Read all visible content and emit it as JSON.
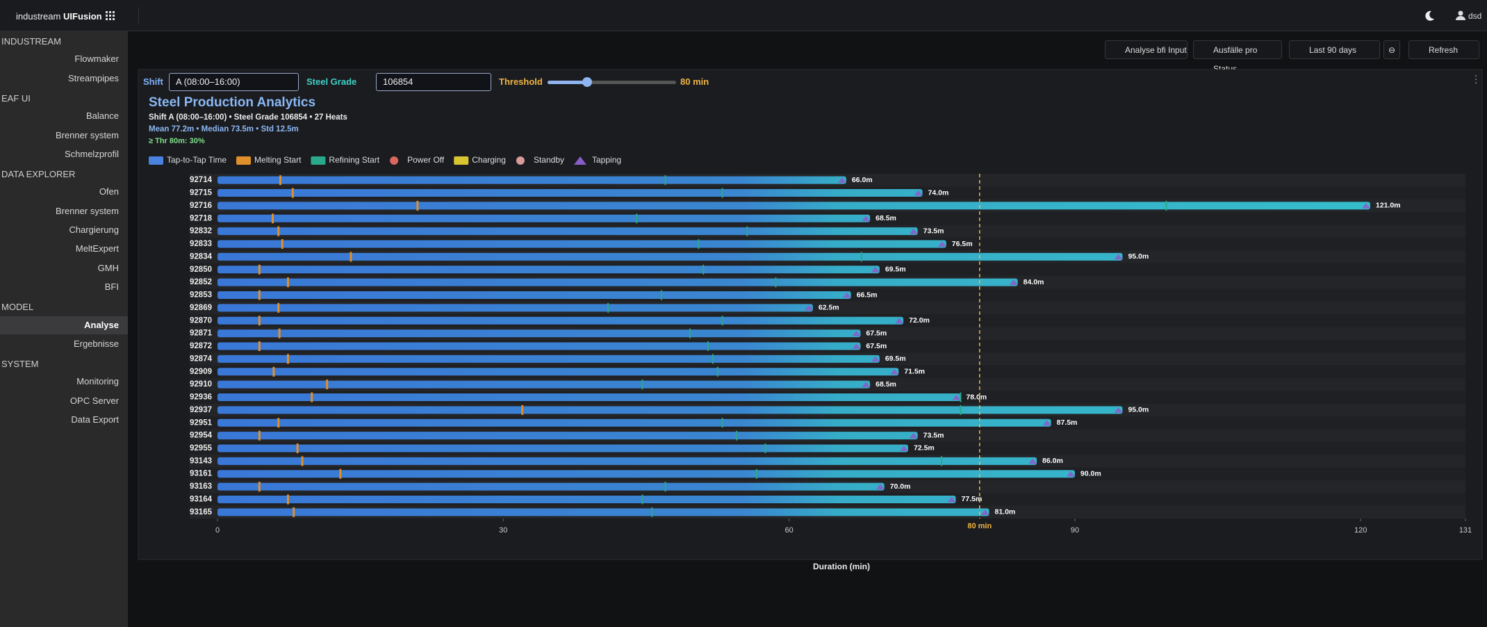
{
  "header": {
    "brand": "industream",
    "product": "UIFusion",
    "user": "dsd"
  },
  "sidebar": {
    "sections": [
      {
        "title": "INDUSTREAM",
        "items": [
          "Flowmaker",
          "Streampipes"
        ]
      },
      {
        "title": "EAF UI",
        "items": [
          "Balance",
          "Brenner system",
          "Schmelzprofil"
        ]
      },
      {
        "title": "DATA EXPLORER",
        "items": [
          "Ofen",
          "Brenner system",
          "Chargierung",
          "MeltExpert",
          "GMH",
          "BFI"
        ]
      },
      {
        "title": "MODEL",
        "items": [
          "Analyse",
          "Ergebnisse"
        ]
      },
      {
        "title": "SYSTEM",
        "items": [
          "Monitoring",
          "OPC Server",
          "Data Export"
        ]
      }
    ],
    "active": [
      3,
      0
    ]
  },
  "toolbar": {
    "buttons": [
      "Analyse bfi Input",
      "Ausfälle pro Status",
      "Last 90 days",
      "Refresh"
    ]
  },
  "controls": {
    "shift_label": "Shift",
    "shift": "A (08:00–16:00)",
    "grade_label": "Steel Grade",
    "grade": "106854",
    "threshold_label": "Threshold"
  },
  "chart_data": {
    "type": "bar",
    "orientation": "horizontal",
    "title": "Steel Production Analytics",
    "subtitle": "Shift A (08:00–16:00) • Steel Grade 106854 • 27 Heats",
    "stats": "Mean 77.2m  •  Median 73.5m  •  Std 12.5m",
    "threshold_note": "≥ Thr 80m: 30%",
    "x_label": "Duration (min)",
    "categories": [
      "92714",
      "92715",
      "92716",
      "92718",
      "92832",
      "92833",
      "92834",
      "92850",
      "92852",
      "92853",
      "92869",
      "92870",
      "92871",
      "92872",
      "92874",
      "92909",
      "92910",
      "92936",
      "92937",
      "92951",
      "92954",
      "92955",
      "93143",
      "93161",
      "93163",
      "93164",
      "93165"
    ],
    "series": [
      {
        "name": "Tap-to-Tap Time",
        "color": "#4a82e0",
        "values": [
          66.0,
          74.0,
          121.0,
          68.5,
          73.5,
          76.5,
          95.0,
          69.5,
          84.0,
          66.5,
          62.5,
          72.0,
          67.5,
          67.5,
          69.5,
          71.5,
          68.5,
          78.0,
          95.0,
          87.5,
          73.5,
          72.5,
          86.0,
          90.0,
          70.0,
          77.5,
          81.0
        ],
        "value_labels": [
          "66.0m",
          "74.0m",
          "121.0m",
          "68.5m",
          "73.5m",
          "76.5m",
          "95.0m",
          "69.5m",
          "84.0m",
          "66.5m",
          "62.5m",
          "72.0m",
          "67.5m",
          "67.5m",
          "69.5m",
          "71.5m",
          "68.5m",
          "78.0m",
          "95.0m",
          "87.5m",
          "73.5m",
          "72.5m",
          "86.0m",
          "90.0m",
          "70.0m",
          "77.5m",
          "81.0m"
        ]
      },
      {
        "name": "Melting Start",
        "color": "#e0902a",
        "values": [
          6.6,
          7.9,
          21,
          5.8,
          6.4,
          6.8,
          14,
          4.4,
          7.4,
          4.4,
          6.4,
          4.4,
          6.5,
          4.4,
          7.4,
          5.9,
          11.5,
          9.9,
          32,
          6.4,
          4.4,
          8.4,
          8.9,
          12.9,
          4.4,
          7.4,
          8.0
        ]
      },
      {
        "name": "Refining Start",
        "color": "#2aa88a",
        "values": [
          47,
          53,
          99.6,
          44,
          55.6,
          50.5,
          67.6,
          51,
          58.6,
          46.6,
          41,
          53,
          49.6,
          51.5,
          52,
          52.5,
          44.6,
          78,
          78,
          53,
          54.5,
          57.5,
          76,
          56.6,
          47,
          44.6,
          45.6
        ]
      }
    ],
    "legend_only": [
      {
        "name": "Power Off",
        "color": "#d9675f",
        "marker": "circle"
      },
      {
        "name": "Charging",
        "color": "#d8c531",
        "marker": "square"
      },
      {
        "name": "Standby",
        "color": "#d99a9a",
        "marker": "circle"
      },
      {
        "name": "Tapping",
        "color": "#8a5cc9",
        "marker": "triangle"
      }
    ],
    "xlim": [
      0,
      131
    ],
    "xticks": [
      0,
      30,
      60,
      90,
      120,
      131
    ],
    "threshold": {
      "value": 80,
      "label": "80 min",
      "color": "#f0b545"
    }
  }
}
